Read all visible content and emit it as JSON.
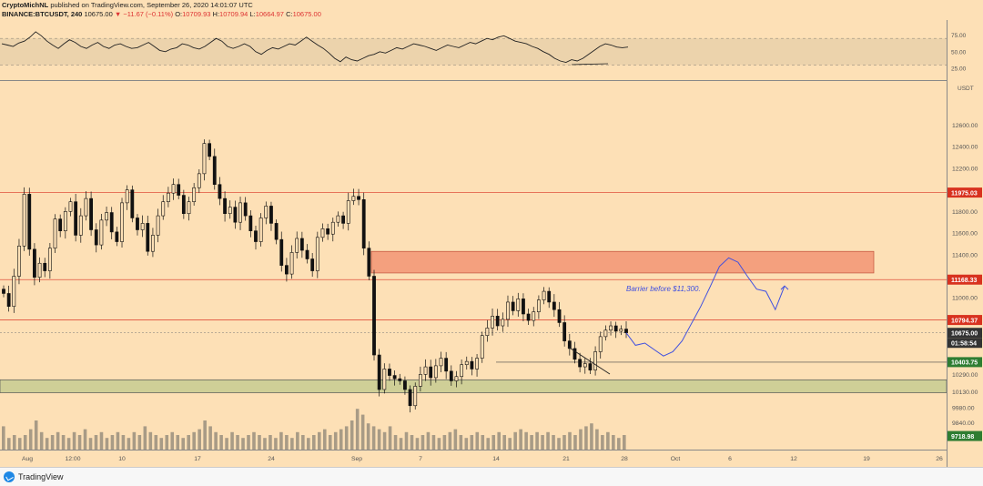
{
  "header": {
    "author": "CryptoMichNL",
    "published": " published on TradingView.com, September 26, 2020 14:01:07 UTC",
    "symbol": "BINANCE:BTCUSDT, 240",
    "last": "10675.00",
    "change": "▼ −11.67 (−0.11%)",
    "o_label": "O:",
    "o": "10709.93",
    "h_label": "H:",
    "h": "10709.94",
    "l_label": "L:",
    "l": "10664.97",
    "c_label": "C:",
    "c": "10675.00"
  },
  "footer": {
    "brand": "TradingView"
  },
  "colors": {
    "background": "#fde0b6",
    "rsi_band": "#ecd3ac",
    "resistance_zone": "#f4a07e",
    "support_zone": "#cfcf97",
    "hline": "#e0503c",
    "projection": "#3f4fe0",
    "volume": "#a89b86"
  },
  "chart_data": [
    {
      "type": "line",
      "name": "RSI",
      "y_ticks": [
        "75.00",
        "50.00",
        "25.00"
      ],
      "ylim": [
        10,
        95
      ],
      "band": [
        30,
        70
      ],
      "values": [
        62,
        60,
        58,
        63,
        66,
        72,
        80,
        74,
        66,
        60,
        55,
        62,
        68,
        64,
        58,
        55,
        60,
        64,
        58,
        55,
        60,
        62,
        58,
        55,
        56,
        60,
        64,
        58,
        52,
        50,
        54,
        56,
        62,
        60,
        56,
        54,
        58,
        64,
        70,
        66,
        58,
        55,
        58,
        62,
        58,
        50,
        46,
        52,
        56,
        54,
        58,
        62,
        60,
        66,
        72,
        66,
        60,
        55,
        48,
        40,
        35,
        42,
        38,
        36,
        40,
        44,
        46,
        50,
        48,
        52,
        56,
        54,
        58,
        62,
        60,
        58,
        55,
        52,
        56,
        60,
        58,
        56,
        60,
        64,
        62,
        66,
        70,
        68,
        72,
        74,
        70,
        66,
        64,
        62,
        58,
        55,
        50,
        46,
        40,
        36,
        34,
        38,
        36,
        40,
        46,
        52,
        58,
        62,
        60,
        57,
        56,
        57
      ]
    },
    {
      "type": "table",
      "name": "BTCUSDT price chart",
      "y_axis_unit": "USDT",
      "y_ticks": [
        "12600.00",
        "12400.00",
        "12200.00",
        "11800.00",
        "11600.00",
        "11400.00",
        "11000.00",
        "10290.00",
        "10130.00",
        "9980.00",
        "9840.00"
      ],
      "x_ticks": [
        "Aug",
        "12:00",
        "10",
        "17",
        "24",
        "Sep",
        "7",
        "14",
        "21",
        "28",
        "Oct",
        "6",
        "12",
        "19",
        "26"
      ],
      "ylim": [
        9610,
        12950
      ],
      "price_labels": [
        {
          "label": "11975.03",
          "kind": "red"
        },
        {
          "label": "11168.33",
          "kind": "red"
        },
        {
          "label": "10794.37",
          "kind": "red"
        },
        {
          "label": "10675.00",
          "kind": "dark"
        },
        {
          "label": "01:58:54",
          "kind": "dark"
        },
        {
          "label": "10403.75",
          "kind": "green"
        },
        {
          "label": "9718.98",
          "kind": "green"
        }
      ],
      "annotation": "Barrier before $11,300.",
      "resistance_zone": [
        11230,
        11430
      ],
      "support_zone": [
        10120,
        10240
      ],
      "close_series": [
        11040,
        10920,
        11200,
        11480,
        11960,
        11450,
        11190,
        11320,
        11250,
        11460,
        11730,
        11620,
        11800,
        11890,
        11580,
        11760,
        11920,
        11630,
        11490,
        11720,
        11790,
        11610,
        11520,
        11880,
        12000,
        11740,
        11630,
        11690,
        11430,
        11580,
        11760,
        11890,
        11970,
        12050,
        11950,
        11780,
        11890,
        12020,
        12150,
        12430,
        12310,
        12050,
        11920,
        11780,
        11840,
        11700,
        11880,
        11760,
        11620,
        11520,
        11740,
        11850,
        11690,
        11540,
        11300,
        11220,
        11420,
        11550,
        11440,
        11360,
        11250,
        11560,
        11640,
        11590,
        11700,
        11760,
        11690,
        11900,
        11940,
        11910,
        11460,
        11200,
        10470,
        10150,
        10340,
        10280,
        10250,
        10230,
        10150,
        10000,
        10180,
        10290,
        10360,
        10260,
        10370,
        10440,
        10320,
        10230,
        10270,
        10380,
        10410,
        10340,
        10440,
        10650,
        10720,
        10830,
        10740,
        10800,
        10960,
        10880,
        10990,
        10850,
        10790,
        10870,
        10980,
        11060,
        10960,
        10890,
        10770,
        10600,
        10530,
        10430,
        10360,
        10390,
        10330,
        10500,
        10640,
        10700,
        10740,
        10690,
        10710,
        10675
      ],
      "volume": [
        8,
        4,
        5,
        4,
        5,
        7,
        10,
        6,
        4,
        5,
        6,
        5,
        4,
        6,
        5,
        7,
        4,
        5,
        6,
        4,
        5,
        6,
        5,
        4,
        6,
        5,
        8,
        6,
        5,
        4,
        5,
        6,
        5,
        4,
        5,
        6,
        7,
        10,
        8,
        6,
        5,
        4,
        6,
        5,
        4,
        5,
        6,
        5,
        4,
        5,
        4,
        6,
        5,
        4,
        6,
        5,
        4,
        5,
        6,
        7,
        5,
        6,
        7,
        8,
        10,
        14,
        12,
        9,
        8,
        7,
        6,
        8,
        5,
        4,
        6,
        5,
        4,
        5,
        6,
        5,
        4,
        5,
        6,
        7,
        5,
        4,
        5,
        6,
        5,
        4,
        5,
        6,
        5,
        4,
        6,
        7,
        6,
        5,
        6,
        5,
        6,
        5,
        4,
        5,
        6,
        5,
        7,
        8,
        9,
        7,
        5,
        6,
        5,
        4,
        5
      ],
      "projection": [
        10675,
        10560,
        10580,
        10520,
        10460,
        10500,
        10600,
        10760,
        10920,
        11100,
        11290,
        11370,
        11330,
        11200,
        11080,
        11060,
        10890,
        11110
      ]
    }
  ]
}
